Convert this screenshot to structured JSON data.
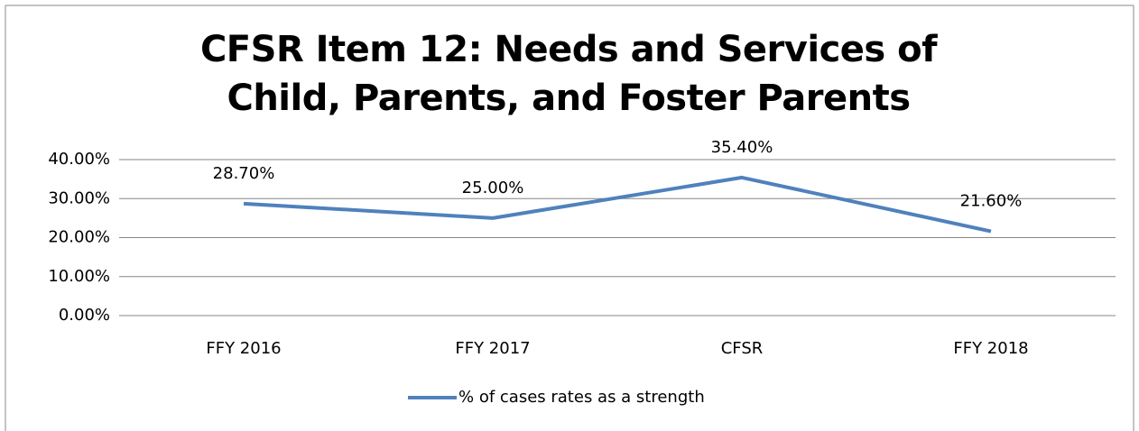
{
  "chart_data": {
    "type": "line",
    "title": "CFSR Item 12: Needs and Services of Child, Parents, and Foster Parents",
    "categories": [
      "FFY 2016",
      "FFY 2017",
      "CFSR",
      "FFY 2018"
    ],
    "series": [
      {
        "name": "% of cases rates as a strength",
        "color": "#4f81bd",
        "values": [
          28.7,
          25.0,
          35.4,
          21.6
        ],
        "value_labels": [
          "28.70%",
          "25.00%",
          "35.40%",
          "21.60%"
        ]
      }
    ],
    "ylim": [
      0,
      40
    ],
    "yticks": [
      {
        "value": 0,
        "label": "0.00%"
      },
      {
        "value": 10,
        "label": "10.00%"
      },
      {
        "value": 20,
        "label": "20.00%"
      },
      {
        "value": 30,
        "label": "30.00%"
      },
      {
        "value": 40,
        "label": "40.00%"
      }
    ],
    "grid": true,
    "legend": "bottom"
  }
}
